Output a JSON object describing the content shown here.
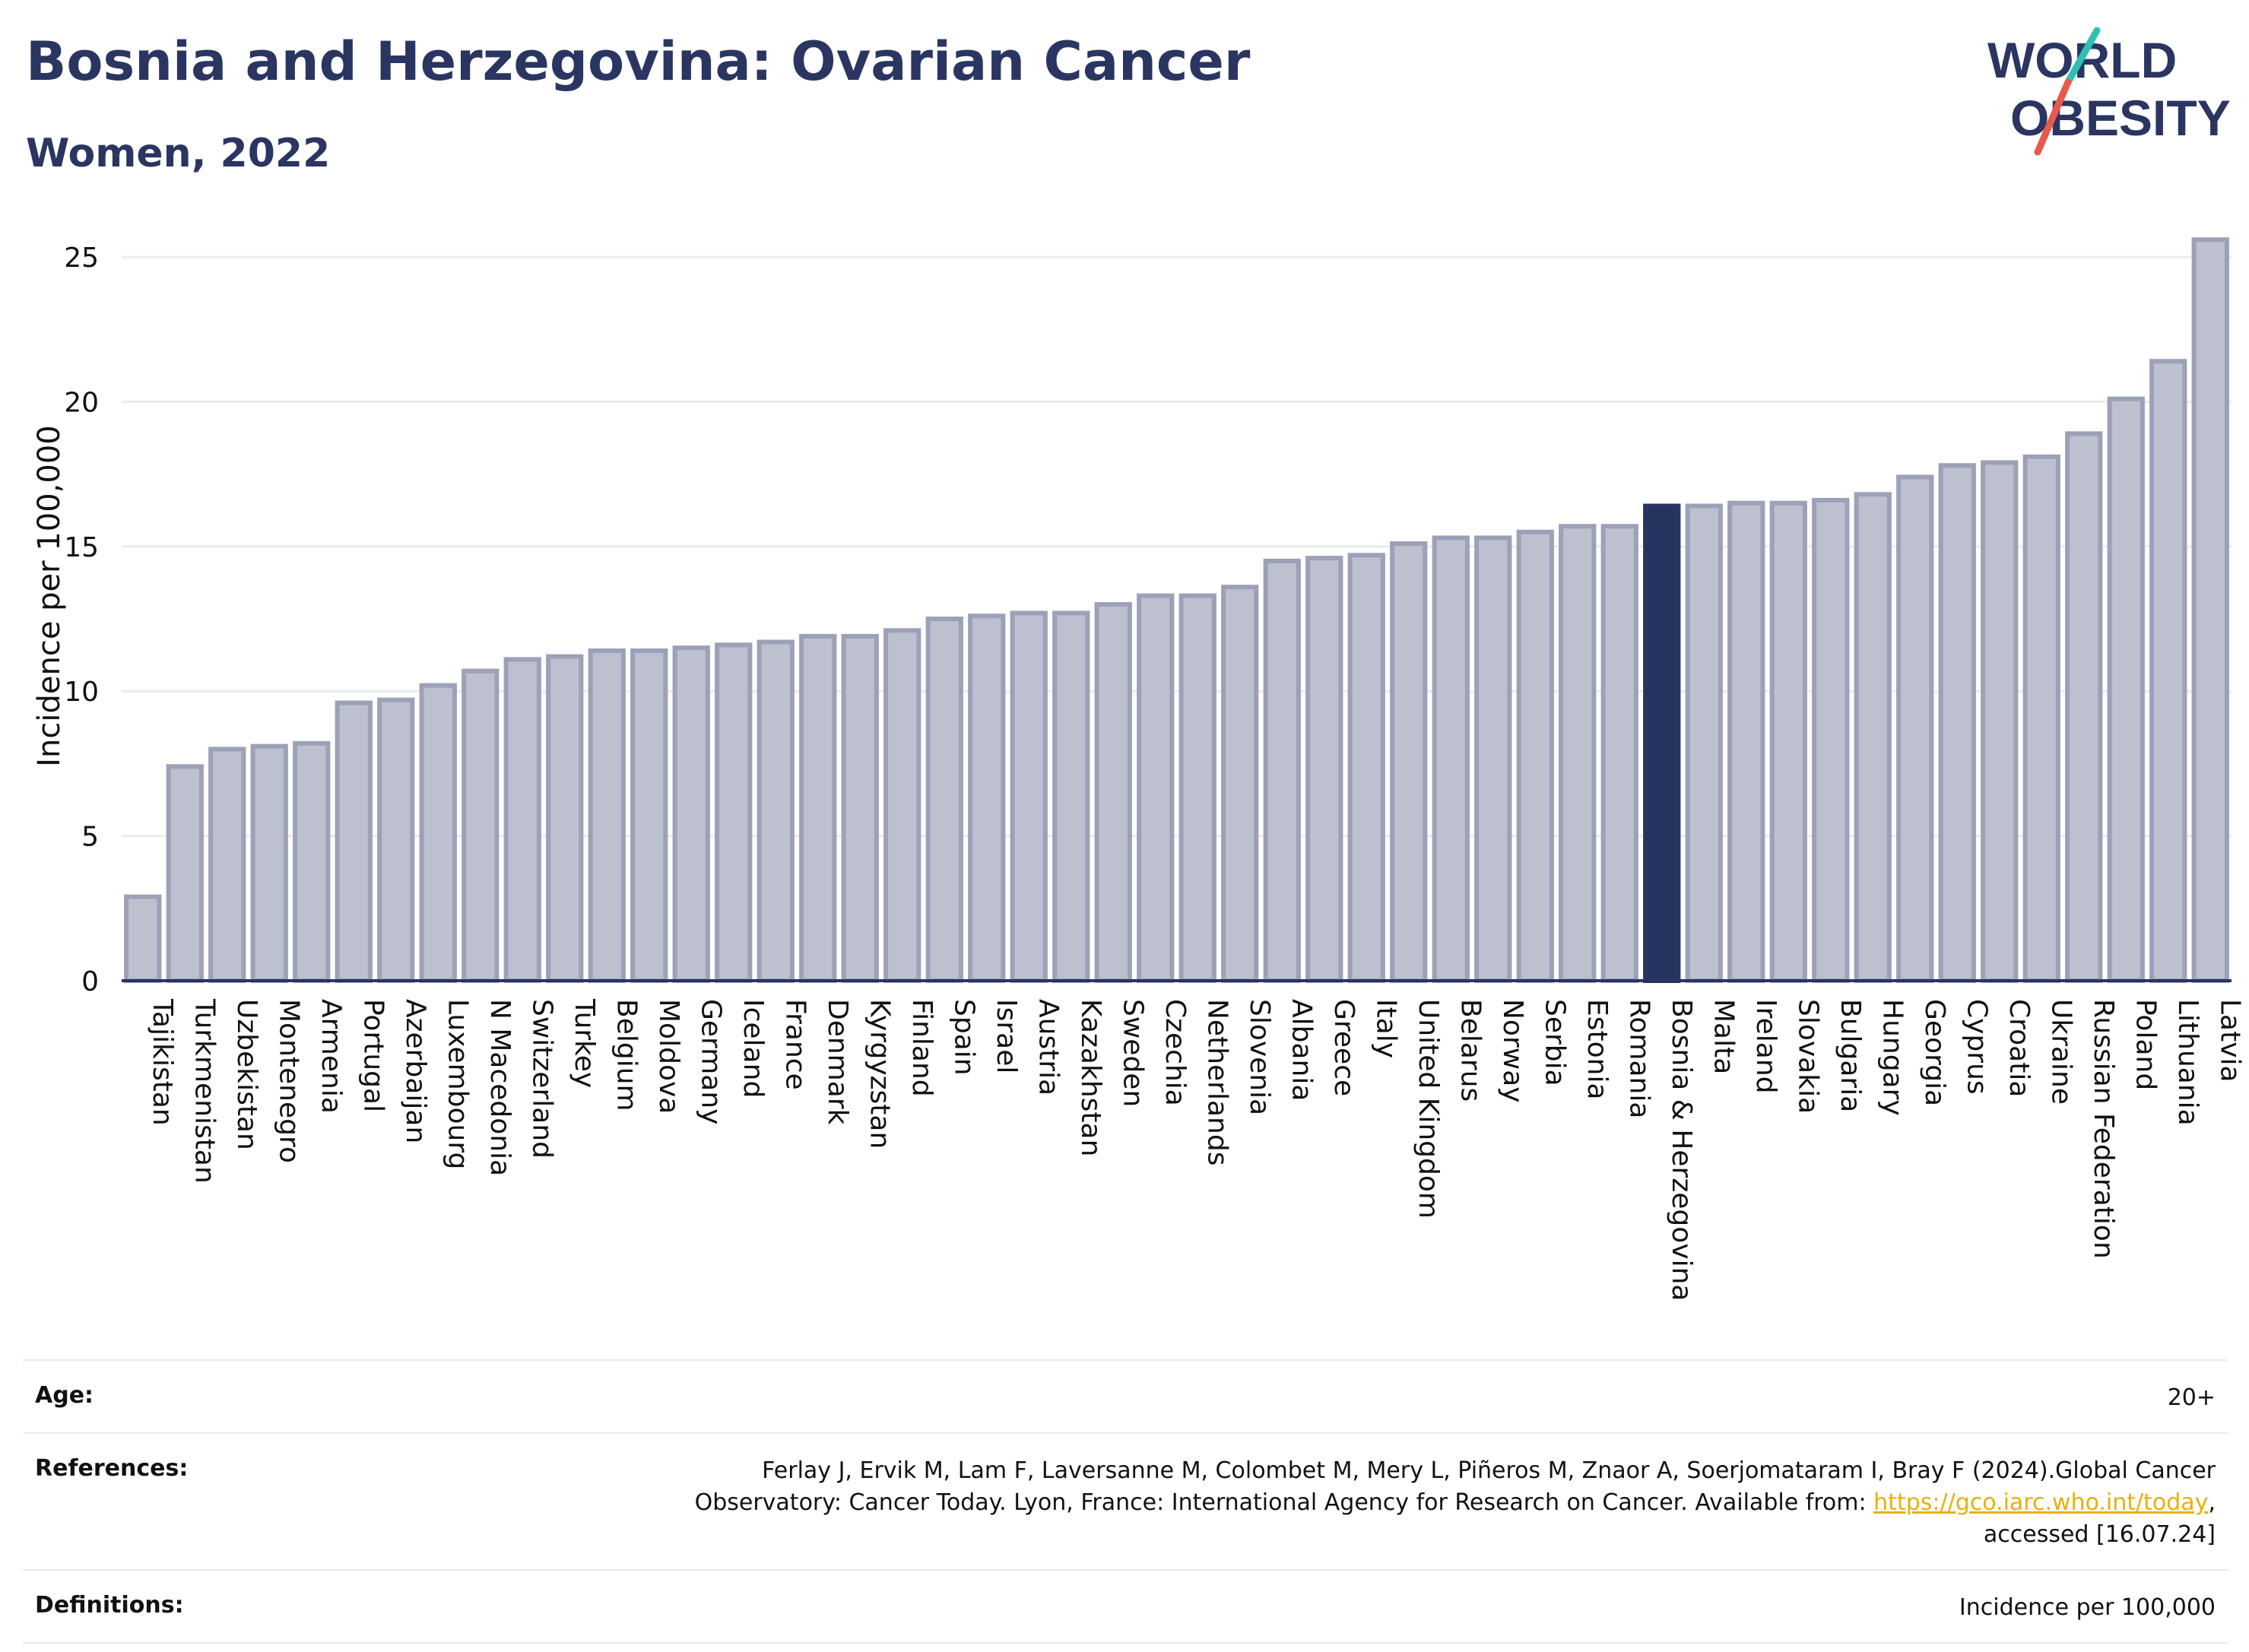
{
  "header": {
    "title": "Bosnia and Herzegovina: Ovarian Cancer",
    "subtitle": "Women, 2022",
    "logo_line1": "WORLD",
    "logo_line2": "OBESITY"
  },
  "colors": {
    "title": "#2a3561",
    "bar_fill": "#bcc0cf",
    "bar_stroke": "#9ca1b8",
    "highlight": "#283460",
    "grid": "#e8ecec",
    "axis": "#283460",
    "link": "#e7b10c",
    "logo_teal": "#2fbfb3",
    "logo_red": "#e8594a"
  },
  "chart_data": {
    "type": "bar",
    "title": "",
    "xlabel": "",
    "ylabel": "Incidence per 100,000",
    "ylim": [
      0,
      26
    ],
    "yticks": [
      0,
      5,
      10,
      15,
      20,
      25
    ],
    "highlight": "Bosnia & Herzegovina",
    "grid": true,
    "categories": [
      "Tajikistan",
      "Turkmenistan",
      "Uzbekistan",
      "Montenegro",
      "Armenia",
      "Portugal",
      "Azerbaijan",
      "Luxembourg",
      "N Macedonia",
      "Switzerland",
      "Turkey",
      "Belgium",
      "Moldova",
      "Germany",
      "Iceland",
      "France",
      "Denmark",
      "Kyrgyzstan",
      "Finland",
      "Spain",
      "Israel",
      "Austria",
      "Kazakhstan",
      "Sweden",
      "Czechia",
      "Netherlands",
      "Slovenia",
      "Albania",
      "Greece",
      "Italy",
      "United Kingdom",
      "Belarus",
      "Norway",
      "Serbia",
      "Estonia",
      "Romania",
      "Bosnia & Herzegovina",
      "Malta",
      "Ireland",
      "Slovakia",
      "Bulgaria",
      "Hungary",
      "Georgia",
      "Cyprus",
      "Croatia",
      "Ukraine",
      "Russian Federation",
      "Poland",
      "Lithuania",
      "Latvia"
    ],
    "values": [
      2.9,
      7.4,
      8.0,
      8.1,
      8.2,
      9.6,
      9.7,
      10.2,
      10.7,
      11.1,
      11.2,
      11.4,
      11.4,
      11.5,
      11.6,
      11.7,
      11.9,
      11.9,
      12.1,
      12.5,
      12.6,
      12.7,
      12.7,
      13.0,
      13.3,
      13.3,
      13.6,
      14.5,
      14.6,
      14.7,
      15.1,
      15.3,
      15.3,
      15.5,
      15.7,
      15.7,
      16.4,
      16.4,
      16.5,
      16.5,
      16.6,
      16.8,
      17.4,
      17.8,
      17.9,
      18.1,
      18.9,
      20.1,
      21.4,
      25.6
    ]
  },
  "meta": {
    "age_label": "Age:",
    "age_value": "20+",
    "references_label": "References:",
    "references_text_1": "Ferlay J, Ervik M, Lam F, Laversanne M, Colombet M, Mery L, Piñeros M, Znaor A, Soerjomataram I, Bray F (2024).Global Cancer",
    "references_text_2": "Observatory: Cancer Today. Lyon, France: International Agency for Research on Cancer. Available from: ",
    "references_link": "https://gco.iarc.who.int/today",
    "references_text_3": ",",
    "references_text_4": "accessed [16.07.24]",
    "definitions_label": "Definitions:",
    "definitions_value": "Incidence per 100,000"
  }
}
